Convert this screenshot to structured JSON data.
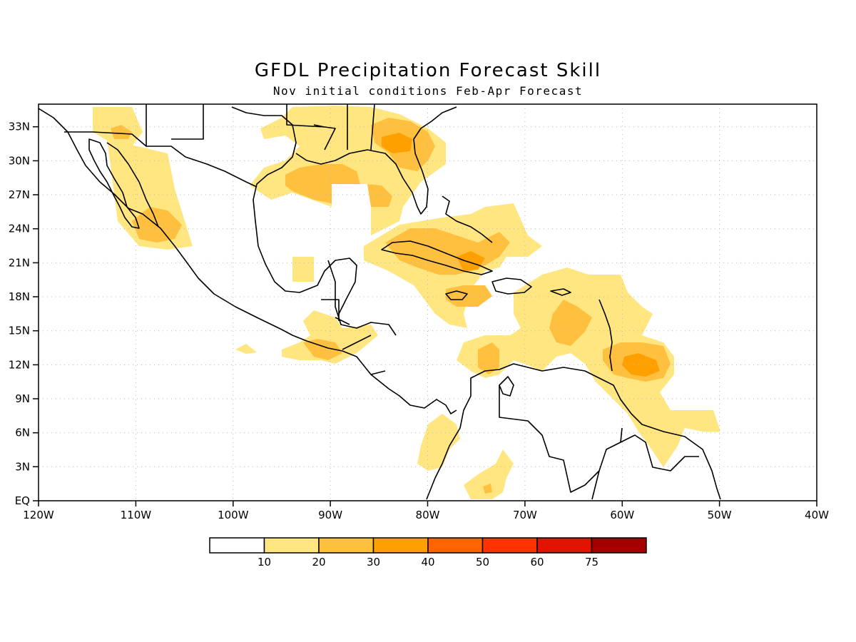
{
  "map": {
    "title": "GFDL Precipitation Forecast Skill",
    "subtitle": "Nov initial conditions  Feb-Apr Forecast",
    "extent": {
      "lon_min": -120,
      "lon_max": -40,
      "lat_min": 0,
      "lat_max": 35
    },
    "x_tick_labels": [
      "120W",
      "110W",
      "100W",
      "90W",
      "80W",
      "70W",
      "60W",
      "50W",
      "40W"
    ],
    "y_tick_labels": [
      "EQ",
      "3N",
      "6N",
      "9N",
      "12N",
      "15N",
      "18N",
      "21N",
      "24N",
      "27N",
      "30N",
      "33N"
    ],
    "grid": true,
    "legend": {
      "labels": [
        "10",
        "20",
        "30",
        "40",
        "50",
        "60",
        "75"
      ],
      "colors": [
        "#ffffff",
        "#ffe680",
        "#ffc040",
        "#ffa000",
        "#ff6400",
        "#ff3200",
        "#e11400",
        "#a50000"
      ]
    }
  },
  "colors": {
    "level1": "#ffe680",
    "level2": "#ffc040",
    "level3": "#ffa000",
    "coast": "#000000"
  }
}
